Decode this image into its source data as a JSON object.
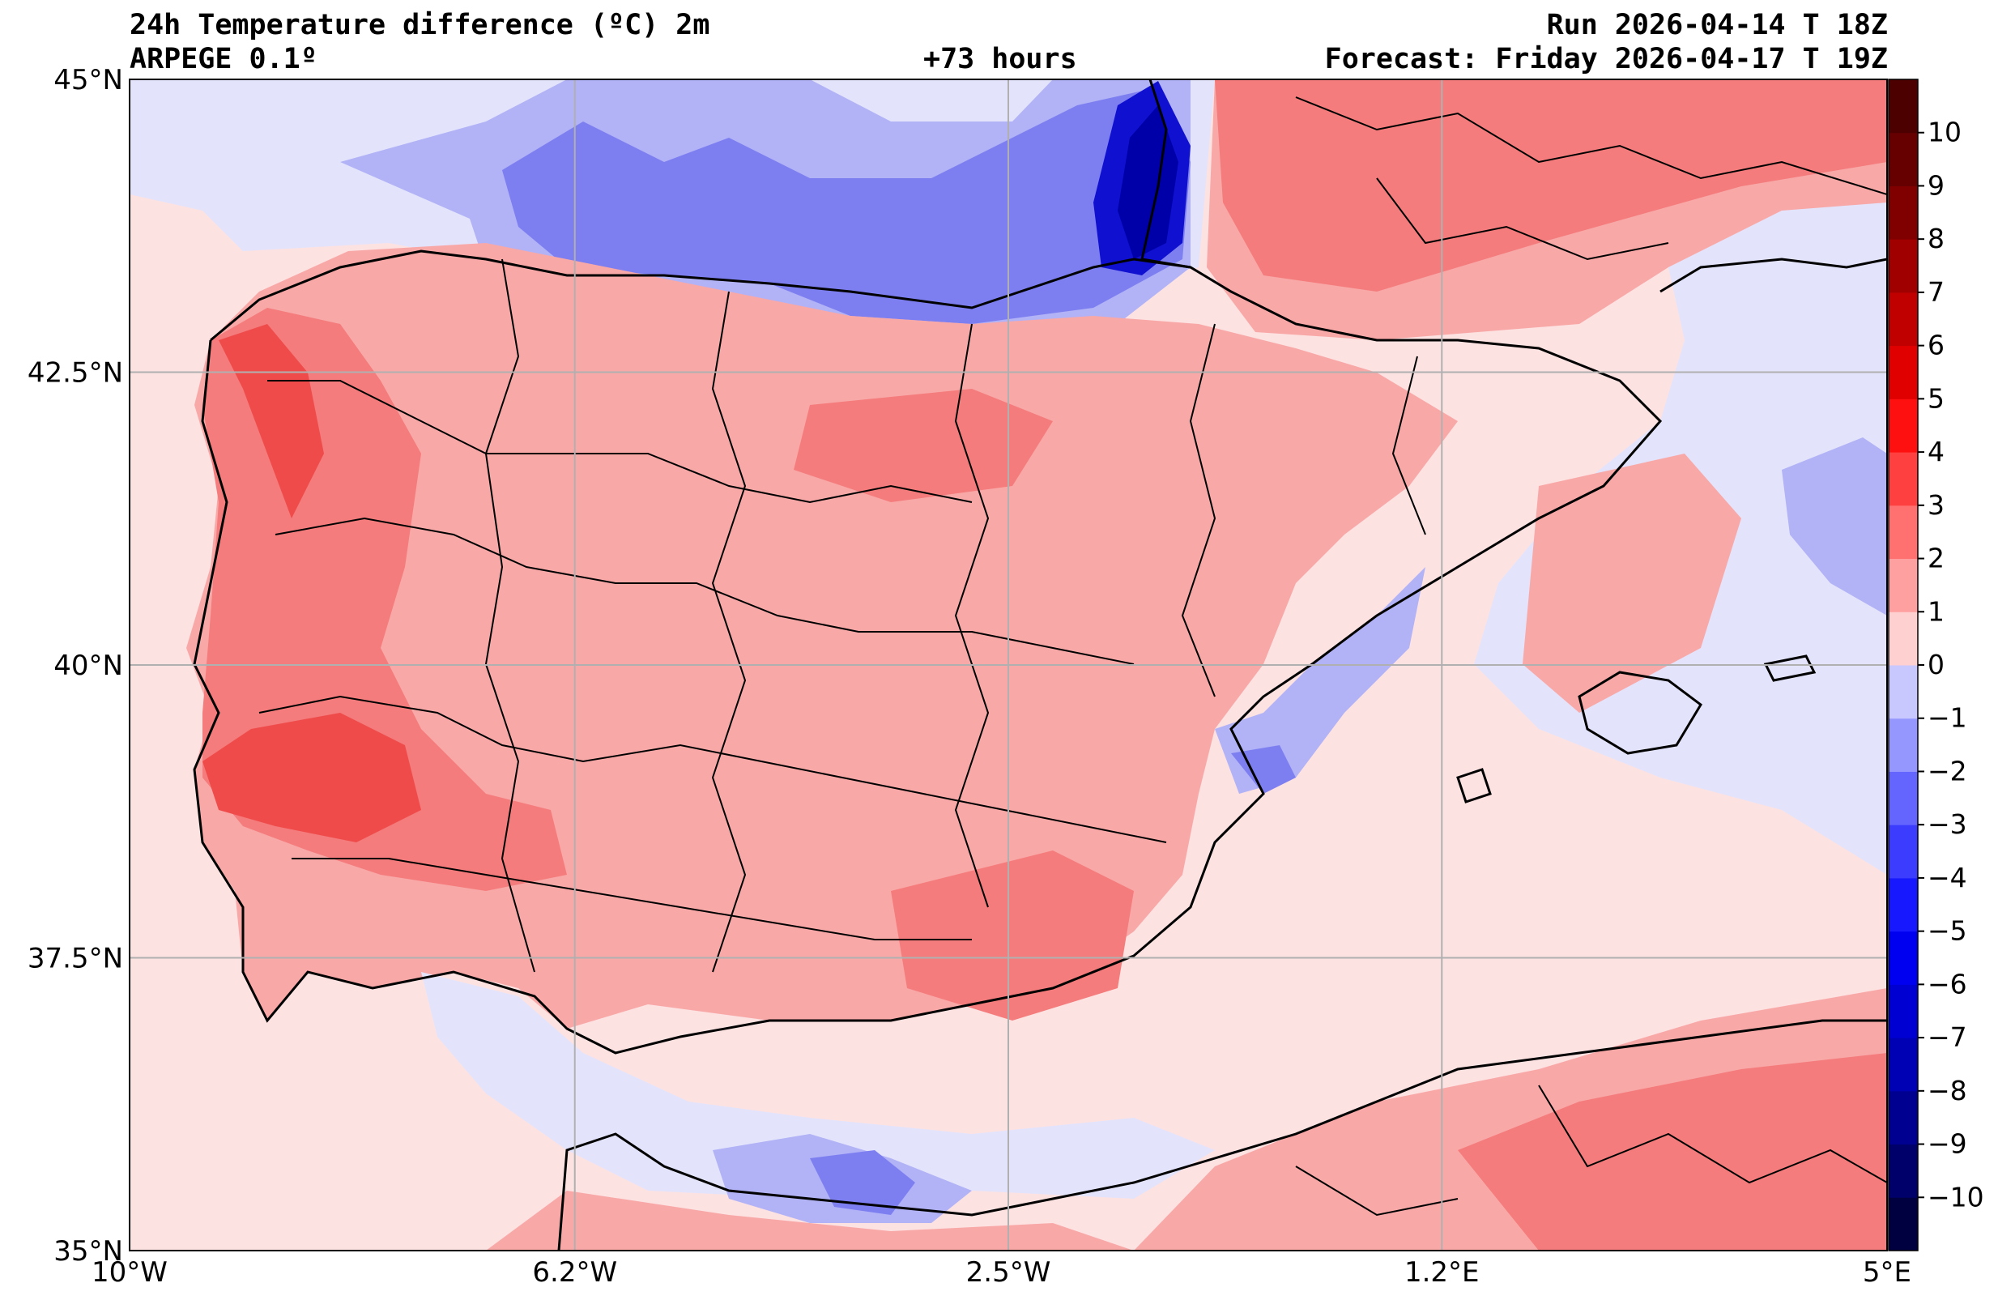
{
  "header": {
    "title": "24h Temperature difference (ºC) 2m",
    "model": "ARPEGE 0.1º",
    "lead_time": "+73 hours",
    "run": "Run 2026-04-14 T 18Z",
    "forecast": "Forecast: Friday 2026-04-17 T 19Z"
  },
  "map": {
    "lon_range": [
      -10,
      5
    ],
    "lat_range": [
      35,
      45
    ],
    "x_ticks": [
      {
        "value": -10,
        "label": "10°W"
      },
      {
        "value": -6.2,
        "label": "6.2°W"
      },
      {
        "value": -2.5,
        "label": "2.5°W"
      },
      {
        "value": 1.2,
        "label": "1.2°E"
      },
      {
        "value": 5,
        "label": "5°E"
      }
    ],
    "y_ticks": [
      {
        "value": 45,
        "label": "45°N"
      },
      {
        "value": 42.5,
        "label": "42.5°N"
      },
      {
        "value": 40,
        "label": "40°N"
      },
      {
        "value": 37.5,
        "label": "37.5°N"
      },
      {
        "value": 35,
        "label": "35°N"
      }
    ],
    "grid": true,
    "colors": {
      "land_warm_0_1": "#fde2e2",
      "warm_1_2": "#f9a8a8",
      "warm_2_3": "#f47c7c",
      "warm_3_4": "#ef4b4b",
      "warm_4_5": "#e62020",
      "cool_0_-1": "#e3e4fb",
      "cool_-1_-2": "#b2b2f6",
      "cool_-2_-3": "#7d7ff0",
      "cool_-3_-4": "#4b4be8",
      "cool_-5_-6": "#1010d0",
      "cool_-6_-7": "#0000a8",
      "border": "#000000",
      "grid": "#b0b0b0"
    }
  },
  "colorbar": {
    "levels": [
      -11,
      -10,
      -9,
      -8,
      -7,
      -6,
      -5,
      -4,
      -3,
      -2,
      -1,
      0,
      1,
      2,
      3,
      4,
      5,
      6,
      7,
      8,
      9,
      10,
      11
    ],
    "labels": [
      "−10",
      "−9",
      "−8",
      "−7",
      "−6",
      "−5",
      "−4",
      "−3",
      "−2",
      "−1",
      "0",
      "1",
      "2",
      "3",
      "4",
      "5",
      "6",
      "7",
      "8",
      "9",
      "10"
    ],
    "label_values": [
      -10,
      -9,
      -8,
      -7,
      -6,
      -5,
      -4,
      -3,
      -2,
      -1,
      0,
      1,
      2,
      3,
      4,
      5,
      6,
      7,
      8,
      9,
      10
    ],
    "colors": [
      "#000040",
      "#00006a",
      "#000090",
      "#0000b4",
      "#0000d2",
      "#0000f0",
      "#1818ff",
      "#3c3cff",
      "#6464ff",
      "#9696ff",
      "#c8c8ff",
      "#ffd0d0",
      "#ffa0a0",
      "#ff7070",
      "#ff4040",
      "#ff1010",
      "#e00000",
      "#c00000",
      "#a00000",
      "#800000",
      "#660000",
      "#4c0000"
    ]
  }
}
